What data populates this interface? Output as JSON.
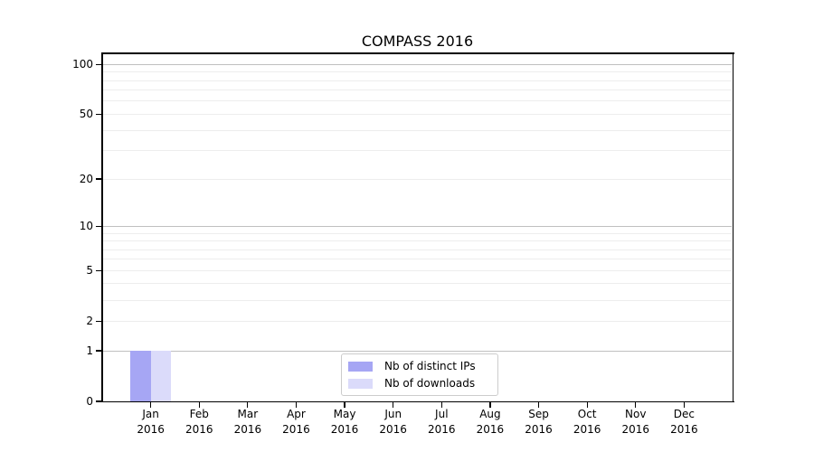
{
  "chart_data": {
    "type": "bar",
    "title": "COMPASS 2016",
    "categories": [
      "Jan",
      "Feb",
      "Mar",
      "Apr",
      "May",
      "Jun",
      "Jul",
      "Aug",
      "Sep",
      "Oct",
      "Nov",
      "Dec"
    ],
    "x_year": "2016",
    "series": [
      {
        "name": "Nb of distinct IPs",
        "color": "#a6a6f4",
        "values": [
          1,
          0,
          0,
          0,
          0,
          0,
          0,
          0,
          0,
          0,
          0,
          0
        ]
      },
      {
        "name": "Nb of downloads",
        "color": "#dbdbfa",
        "values": [
          1,
          0,
          0,
          0,
          0,
          0,
          0,
          0,
          0,
          0,
          0,
          0
        ]
      }
    ],
    "y_axis": {
      "scale": "log1p",
      "tick_labels": [
        0,
        1,
        2,
        5,
        10,
        20,
        50,
        100
      ],
      "range": [
        0,
        116
      ],
      "major_gridlines": [
        1,
        10,
        100
      ],
      "minor_gridlines": [
        2,
        3,
        4,
        5,
        6,
        7,
        8,
        9,
        20,
        30,
        40,
        50,
        60,
        70,
        80,
        90
      ]
    },
    "legend": {
      "entries": [
        "Nb of distinct IPs",
        "Nb of downloads"
      ],
      "position": "lower center"
    },
    "grid": "horizontal only"
  },
  "style": {
    "background": "#ffffff",
    "spine_color": "#000000",
    "text_color": "#000000",
    "grid_major_color": "#c0c0c0",
    "grid_minor_color": "#ededed",
    "legend_border_color": "#cccccc"
  }
}
